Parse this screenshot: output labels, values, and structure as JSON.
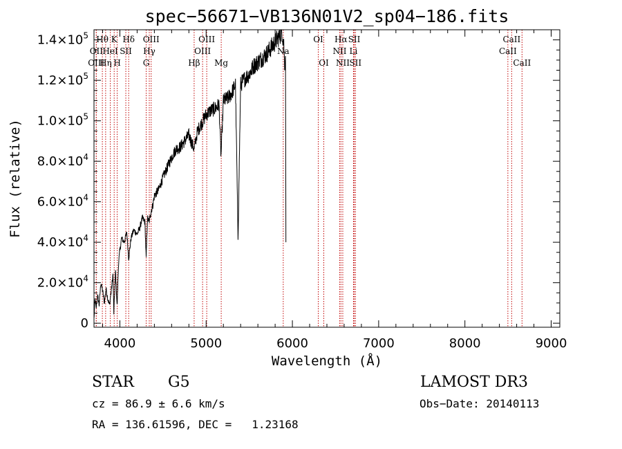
{
  "colors": {
    "frame": "#000000",
    "spectrum": "#000000",
    "line_marker": "#c00000",
    "background": "#ffffff"
  },
  "chart_data": {
    "type": "line",
    "title": "spec−56671−VB136N01V2_sp04−186.fits",
    "xlabel": "Wavelength (Å)",
    "ylabel": "Flux (relative)",
    "xlim": [
      3700,
      9100
    ],
    "ylim": [
      -2000,
      145000
    ],
    "x_ticks": [
      {
        "value": 4000,
        "label": "4000"
      },
      {
        "value": 5000,
        "label": "5000"
      },
      {
        "value": 6000,
        "label": "6000"
      },
      {
        "value": 7000,
        "label": "7000"
      },
      {
        "value": 8000,
        "label": "8000"
      },
      {
        "value": 9000,
        "label": "9000"
      }
    ],
    "y_ticks": [
      {
        "value": 0,
        "mant": "0",
        "exp": ""
      },
      {
        "value": 20000,
        "mant": "2.0×10",
        "exp": "4"
      },
      {
        "value": 40000,
        "mant": "4.0×10",
        "exp": "4"
      },
      {
        "value": 60000,
        "mant": "6.0×10",
        "exp": "4"
      },
      {
        "value": 80000,
        "mant": "8.0×10",
        "exp": "4"
      },
      {
        "value": 100000,
        "mant": "1.0×10",
        "exp": "5"
      },
      {
        "value": 120000,
        "mant": "1.2×10",
        "exp": "5"
      },
      {
        "value": 140000,
        "mant": "1.4×10",
        "exp": "5"
      }
    ],
    "x_minor_step": 200,
    "y_minor_step": 5000,
    "spectrum_anchors": [
      [
        3700,
        2000
      ],
      [
        3712,
        12000
      ],
      [
        3725,
        7000
      ],
      [
        3740,
        14000
      ],
      [
        3760,
        9000
      ],
      [
        3780,
        20000
      ],
      [
        3800,
        16000
      ],
      [
        3820,
        10000
      ],
      [
        3840,
        17000
      ],
      [
        3860,
        12000
      ],
      [
        3880,
        9000
      ],
      [
        3900,
        16000
      ],
      [
        3920,
        24000
      ],
      [
        3930,
        5000
      ],
      [
        3950,
        26000
      ],
      [
        3968,
        8000
      ],
      [
        3985,
        30000
      ],
      [
        4000,
        36000
      ],
      [
        4020,
        42000
      ],
      [
        4050,
        40000
      ],
      [
        4080,
        45000
      ],
      [
        4102,
        32000
      ],
      [
        4130,
        42000
      ],
      [
        4160,
        46000
      ],
      [
        4200,
        44000
      ],
      [
        4230,
        47000
      ],
      [
        4260,
        52000
      ],
      [
        4290,
        50000
      ],
      [
        4305,
        32000
      ],
      [
        4320,
        52000
      ],
      [
        4340,
        50000
      ],
      [
        4360,
        55000
      ],
      [
        4380,
        58000
      ],
      [
        4400,
        63000
      ],
      [
        4450,
        66000
      ],
      [
        4500,
        72000
      ],
      [
        4550,
        77000
      ],
      [
        4600,
        82000
      ],
      [
        4650,
        86000
      ],
      [
        4700,
        87000
      ],
      [
        4750,
        90000
      ],
      [
        4800,
        93000
      ],
      [
        4861,
        86000
      ],
      [
        4900,
        95000
      ],
      [
        4950,
        99000
      ],
      [
        5000,
        103000
      ],
      [
        5050,
        105000
      ],
      [
        5100,
        106000
      ],
      [
        5150,
        108000
      ],
      [
        5172,
        82000
      ],
      [
        5200,
        110000
      ],
      [
        5250,
        111000
      ],
      [
        5300,
        114000
      ],
      [
        5340,
        118000
      ],
      [
        5370,
        42000
      ],
      [
        5400,
        118000
      ],
      [
        5450,
        121000
      ],
      [
        5500,
        123000
      ],
      [
        5550,
        127000
      ],
      [
        5600,
        129000
      ],
      [
        5650,
        131000
      ],
      [
        5700,
        133000
      ],
      [
        5750,
        136000
      ],
      [
        5800,
        139000
      ],
      [
        5850,
        142000
      ],
      [
        5880,
        144000
      ],
      [
        5900,
        138000
      ],
      [
        5910,
        128000
      ],
      [
        5920,
        132000
      ],
      [
        5925,
        40000
      ]
    ],
    "lines": [
      {
        "label": "Hθ",
        "x": 3797,
        "row": 1
      },
      {
        "label": "OII",
        "x": 3727,
        "row": 2
      },
      {
        "label": "OIII",
        "x": 3726,
        "row": 3
      },
      {
        "label": "K",
        "x": 3934,
        "row": 1
      },
      {
        "label": "HeI",
        "x": 3889,
        "row": 2
      },
      {
        "label": "Hη",
        "x": 3835,
        "row": 3
      },
      {
        "label": "H",
        "x": 3969,
        "row": 3
      },
      {
        "label": "Hδ",
        "x": 4102,
        "row": 1
      },
      {
        "label": "SII",
        "x": 4069,
        "row": 2
      },
      {
        "label": "OIII",
        "x": 4363,
        "row": 1
      },
      {
        "label": "Hγ",
        "x": 4341,
        "row": 2
      },
      {
        "label": "G",
        "x": 4305,
        "row": 3
      },
      {
        "label": "OIII",
        "x": 5007,
        "row": 1
      },
      {
        "label": "OIII",
        "x": 4959,
        "row": 2
      },
      {
        "label": "Hβ",
        "x": 4861,
        "row": 3
      },
      {
        "label": "Mg",
        "x": 5175,
        "row": 3
      },
      {
        "label": "Na",
        "x": 5894,
        "row": 2
      },
      {
        "label": "OI",
        "x": 6300,
        "row": 1
      },
      {
        "label": "OI",
        "x": 6364,
        "row": 3
      },
      {
        "label": "Hα",
        "x": 6563,
        "row": 1
      },
      {
        "label": "NII",
        "x": 6548,
        "row": 2
      },
      {
        "label": "NII",
        "x": 6584,
        "row": 3
      },
      {
        "label": "SII",
        "x": 6717,
        "row": 1
      },
      {
        "label": "Li",
        "x": 6708,
        "row": 2
      },
      {
        "label": "SII",
        "x": 6731,
        "row": 3
      },
      {
        "label": "CaII",
        "x": 8542,
        "row": 1
      },
      {
        "label": "CaII",
        "x": 8498,
        "row": 2
      },
      {
        "label": "CaII",
        "x": 8662,
        "row": 3
      }
    ]
  },
  "info": {
    "class": "STAR",
    "subclass": "G5",
    "survey": "LAMOST DR3",
    "cz": "cz = 86.9 ± 6.6 km/s",
    "obs_date": "Obs−Date: 20140113",
    "radec": "RA = 136.61596, DEC =   1.23168"
  }
}
